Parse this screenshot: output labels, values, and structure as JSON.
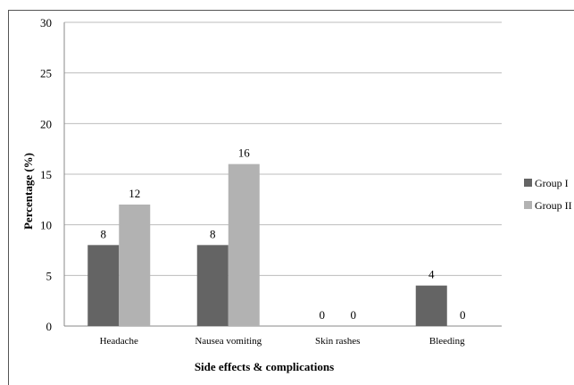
{
  "chart_data": {
    "type": "bar",
    "title": "",
    "xlabel": "Side effects & complications",
    "ylabel": "Percentage (%)",
    "ylim": [
      0,
      30
    ],
    "yticks": [
      0,
      5,
      10,
      15,
      20,
      25,
      30
    ],
    "grid": true,
    "legend_position": "right",
    "categories": [
      "Headache",
      "Nausea vomiting",
      "Skin rashes",
      "Bleeding"
    ],
    "series": [
      {
        "name": "Group I",
        "color": "#646464",
        "values": [
          8,
          8,
          0,
          4
        ]
      },
      {
        "name": "Group II",
        "color": "#b2b2b2",
        "values": [
          12,
          16,
          0,
          0
        ]
      }
    ]
  }
}
